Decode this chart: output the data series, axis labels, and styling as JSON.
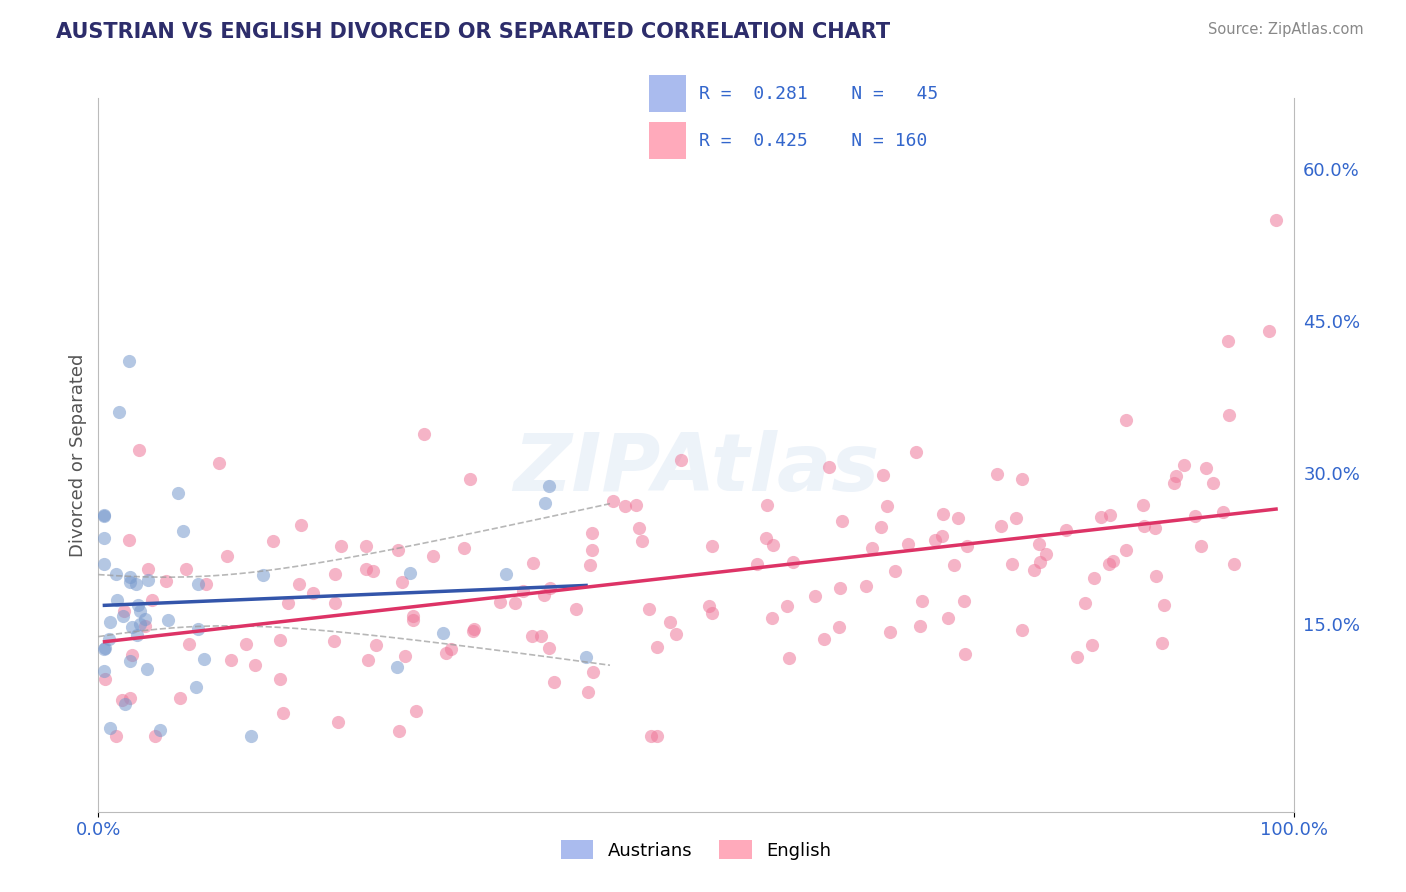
{
  "title": "AUSTRIAN VS ENGLISH DIVORCED OR SEPARATED CORRELATION CHART",
  "source_text": "Source: ZipAtlas.com",
  "ylabel": "Divorced or Separated",
  "xlim": [
    0.0,
    1.0
  ],
  "ylim": [
    -0.035,
    0.67
  ],
  "y_tick_values": [
    0.15,
    0.3,
    0.45,
    0.6
  ],
  "y_tick_labels": [
    "15.0%",
    "30.0%",
    "45.0%",
    "60.0%"
  ],
  "background_color": "#ffffff",
  "grid_color": "#c8c8c8",
  "title_color": "#2d2d6b",
  "axis_label_color": "#555555",
  "tick_label_color": "#3366cc",
  "austrian_dot_color": "#7799cc",
  "english_dot_color": "#ee7799",
  "austrian_legend_patch": "#aabbee",
  "english_legend_patch": "#ffaabb",
  "trend_austrian_color": "#3355aa",
  "trend_english_color": "#dd3366",
  "conf_band_color": "#999999",
  "R_austrian": 0.281,
  "N_austrian": 45,
  "R_english": 0.425,
  "N_english": 160,
  "dot_size": 90,
  "dot_alpha": 0.55
}
